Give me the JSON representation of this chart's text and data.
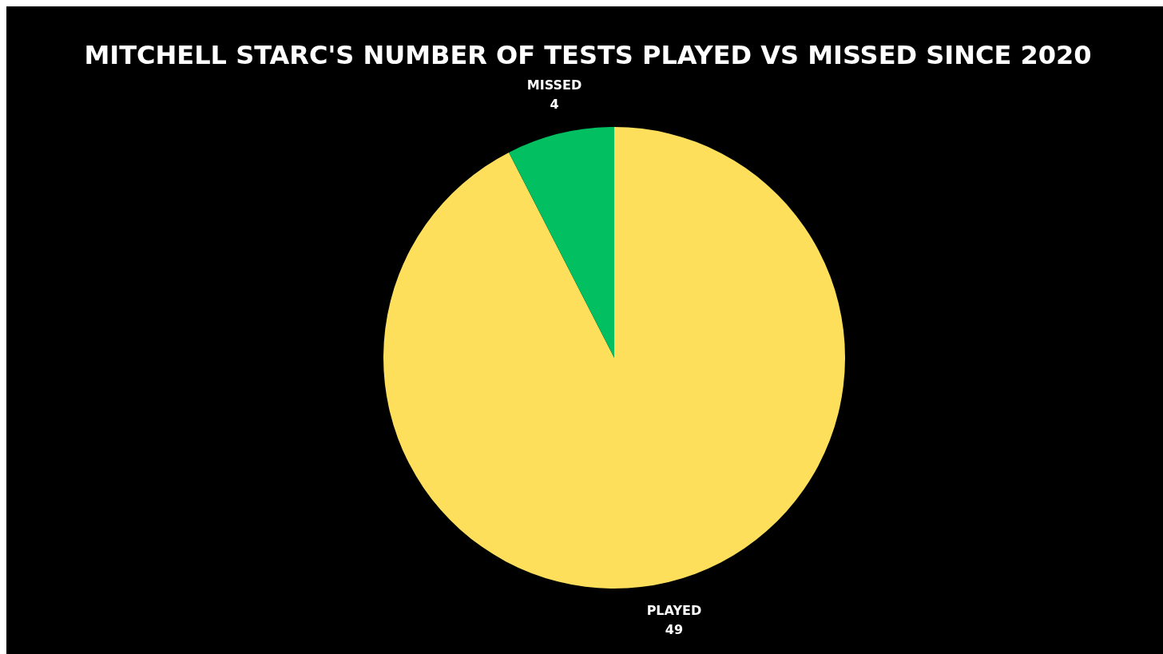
{
  "chart_data": {
    "type": "pie",
    "title": "MITCHELL STARC'S NUMBER OF TESTS PLAYED VS MISSED SINCE 2020",
    "categories": [
      "PLAYED",
      "MISSED"
    ],
    "values": [
      49,
      4
    ],
    "colors": [
      "#fddf5c",
      "#02bf62"
    ],
    "data_labels": true
  }
}
